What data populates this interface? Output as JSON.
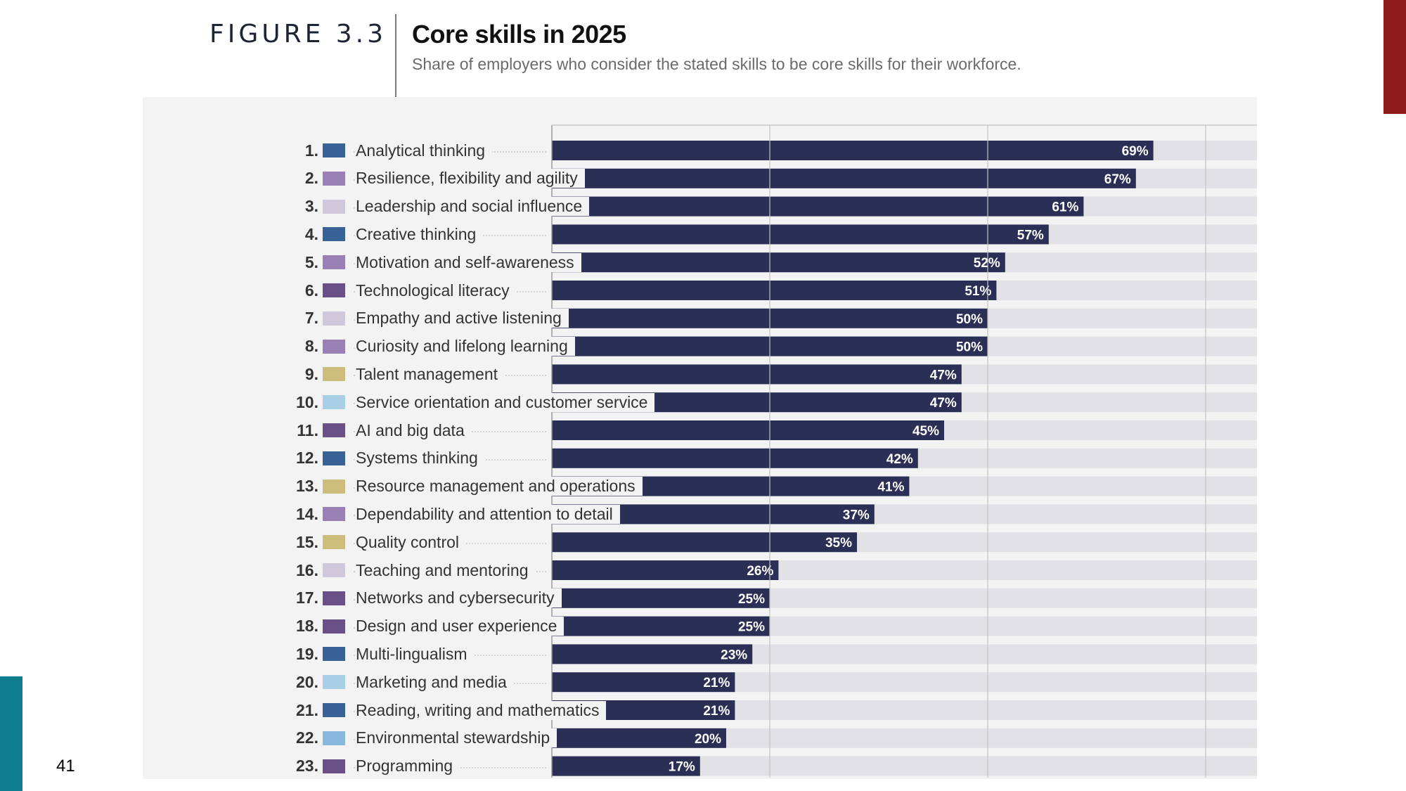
{
  "header": {
    "figure_label": "FIGURE 3.3",
    "title": "Core skills in 2025",
    "subtitle": "Share of employers who consider the stated skills to be core skills for their workforce."
  },
  "page_number": "41",
  "colors": {
    "bar": "#2b2f55",
    "track": "#e2e2e6",
    "panel": "#f3f3f3",
    "accent_right": "#8e1b1b",
    "accent_left": "#0f7f90"
  },
  "chart_data": {
    "type": "bar",
    "orientation": "horizontal",
    "title": "Core skills in 2025",
    "subtitle": "Share of employers who consider the stated skills to be core skills for their workforce.",
    "xlim": [
      0,
      100
    ],
    "unit": "%",
    "grid": true,
    "ranks": [
      "1.",
      "2.",
      "3.",
      "4.",
      "5.",
      "6.",
      "7.",
      "8.",
      "9.",
      "10.",
      "11.",
      "12.",
      "13.",
      "14.",
      "15.",
      "16.",
      "17.",
      "18.",
      "19.",
      "20.",
      "21.",
      "22.",
      "23."
    ],
    "categories": [
      "Analytical thinking",
      "Resilience, flexibility and agility",
      "Leadership and social influence",
      "Creative thinking",
      "Motivation and self-awareness",
      "Technological literacy",
      "Empathy and active listening",
      "Curiosity and lifelong learning",
      "Talent management",
      "Service orientation and customer service",
      "AI and big data",
      "Systems thinking",
      "Resource management and operations",
      "Dependability and attention to detail",
      "Quality control",
      "Teaching and mentoring",
      "Networks and cybersecurity",
      "Design and user experience",
      "Multi-lingualism",
      "Marketing and media",
      "Reading, writing and mathematics",
      "Environmental stewardship",
      "Programming"
    ],
    "values": [
      69,
      67,
      61,
      57,
      52,
      51,
      50,
      50,
      47,
      47,
      45,
      42,
      41,
      37,
      35,
      26,
      25,
      25,
      23,
      21,
      21,
      20,
      17
    ],
    "value_labels": [
      "69%",
      "67%",
      "61%",
      "57%",
      "52%",
      "51%",
      "50%",
      "50%",
      "47%",
      "47%",
      "45%",
      "42%",
      "41%",
      "37%",
      "35%",
      "26%",
      "25%",
      "25%",
      "23%",
      "21%",
      "21%",
      "20%",
      "17%"
    ],
    "swatch_colors": [
      "#386295",
      "#9a7fb5",
      "#cfc8dc",
      "#386295",
      "#9a7fb5",
      "#6b5088",
      "#cfc8dc",
      "#9a7fb5",
      "#cdbd7d",
      "#a9cfe6",
      "#6b5088",
      "#386295",
      "#cdbd7d",
      "#9a7fb5",
      "#cdbd7d",
      "#cfc8dc",
      "#6b5088",
      "#6b5088",
      "#386295",
      "#a9cfe6",
      "#386295",
      "#86b9dd",
      "#6b5088"
    ]
  }
}
